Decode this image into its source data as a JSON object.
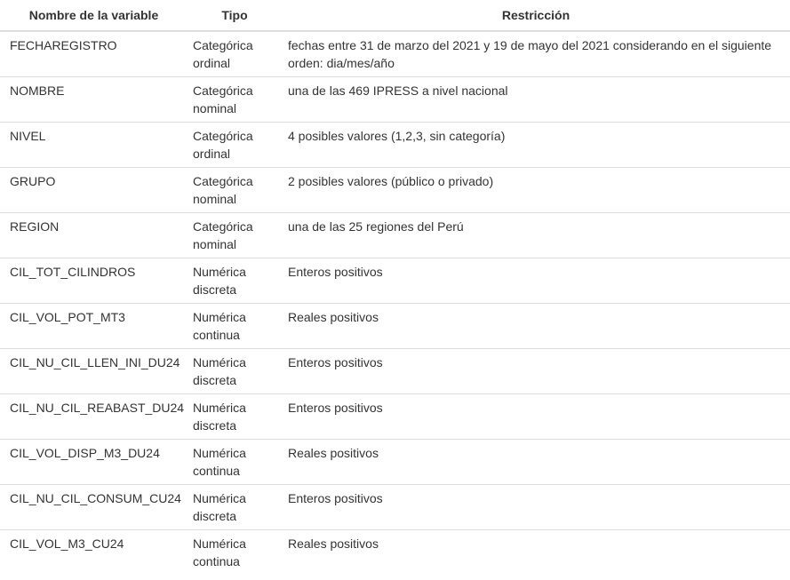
{
  "table": {
    "headers": {
      "variable": "Nombre de la variable",
      "tipo": "Tipo",
      "restriccion": "Restricción"
    },
    "rows": [
      {
        "variable": "FECHAREGISTRO",
        "tipo": "Categórica ordinal",
        "restriccion": "fechas entre 31 de marzo del 2021 y 19 de mayo del 2021 considerando en el siguiente orden: dia/mes/año"
      },
      {
        "variable": "NOMBRE",
        "tipo": "Categórica nominal",
        "restriccion": "una de las 469 IPRESS a nivel nacional"
      },
      {
        "variable": "NIVEL",
        "tipo": "Categórica ordinal",
        "restriccion": "4 posibles valores (1,2,3, sin categoría)"
      },
      {
        "variable": "GRUPO",
        "tipo": "Categórica nominal",
        "restriccion": "2 posibles valores (público o privado)"
      },
      {
        "variable": "REGION",
        "tipo": "Categórica nominal",
        "restriccion": "una de las 25 regiones del Perú"
      },
      {
        "variable": "CIL_TOT_CILINDROS",
        "tipo": "Numérica discreta",
        "restriccion": "Enteros positivos"
      },
      {
        "variable": "CIL_VOL_POT_MT3",
        "tipo": "Numérica continua",
        "restriccion": "Reales positivos"
      },
      {
        "variable": "CIL_NU_CIL_LLEN_INI_DU24",
        "tipo": "Numérica discreta",
        "restriccion": "Enteros positivos"
      },
      {
        "variable": "CIL_NU_CIL_REABAST_DU24",
        "tipo": "Numérica discreta",
        "restriccion": "Enteros positivos"
      },
      {
        "variable": "CIL_VOL_DISP_M3_DU24",
        "tipo": "Numérica continua",
        "restriccion": "Reales positivos"
      },
      {
        "variable": "CIL_NU_CIL_CONSUM_CU24",
        "tipo": "Numérica discreta",
        "restriccion": "Enteros positivos"
      },
      {
        "variable": "CIL_VOL_M3_CU24",
        "tipo": "Numérica continua",
        "restriccion": "Reales positivos"
      }
    ]
  }
}
